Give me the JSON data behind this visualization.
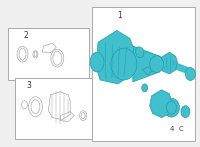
{
  "background": "#f0f0f0",
  "border_color": "#aaaaaa",
  "blue": "#40bfcc",
  "dark_blue": "#2a9aaa",
  "gray": "#aaaaaa",
  "label_color": "#333333",
  "white": "#ffffff",
  "figsize": [
    2.0,
    1.47
  ],
  "dpi": 100
}
